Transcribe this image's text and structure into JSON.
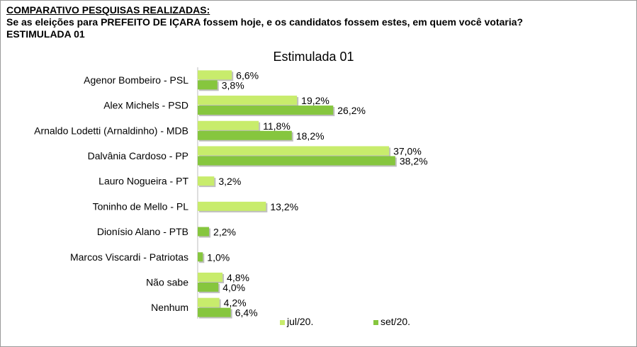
{
  "header": {
    "line1": "COMPARATIVO PESQUISAS REALIZADAS:",
    "line2": "Se as eleições para PREFEITO DE IÇARA fossem hoje, e os candidatos fossem estes, em quem você votaria?",
    "line3": "ESTIMULADA 01"
  },
  "colors": {
    "series1": "#c8ec6c",
    "series2": "#86c63e"
  },
  "chart_data": {
    "type": "bar",
    "orientation": "horizontal",
    "title": "Estimulada 01",
    "xlabel": "",
    "ylabel": "",
    "xlim": [
      0,
      45
    ],
    "grid": false,
    "legend": "bottom",
    "categories": [
      "Agenor Bombeiro - PSL",
      "Alex Michels - PSD",
      "Arnaldo Lodetti (Arnaldinho) - MDB",
      "Dalvânia Cardoso - PP",
      "Lauro Nogueira - PT",
      "Toninho de Mello - PL",
      "Dionísio Alano - PTB",
      "Marcos Viscardi - Patriotas",
      "Não sabe",
      "Nenhum"
    ],
    "series": [
      {
        "name": "jul/20.",
        "values": [
          6.6,
          19.2,
          11.8,
          37.0,
          3.2,
          13.2,
          null,
          null,
          4.8,
          4.2
        ],
        "labels": [
          "6,6%",
          "19,2%",
          "11,8%",
          "37,0%",
          "3,2%",
          "13,2%",
          "",
          "",
          "4,8%",
          "4,2%"
        ]
      },
      {
        "name": "set/20.",
        "values": [
          3.8,
          26.2,
          18.2,
          38.2,
          null,
          null,
          2.2,
          1.0,
          4.0,
          6.4
        ],
        "labels": [
          "3,8%",
          "26,2%",
          "18,2%",
          "38,2%",
          "",
          "",
          "2,2%",
          "1,0%",
          "4,0%",
          "6,4%"
        ]
      }
    ]
  }
}
